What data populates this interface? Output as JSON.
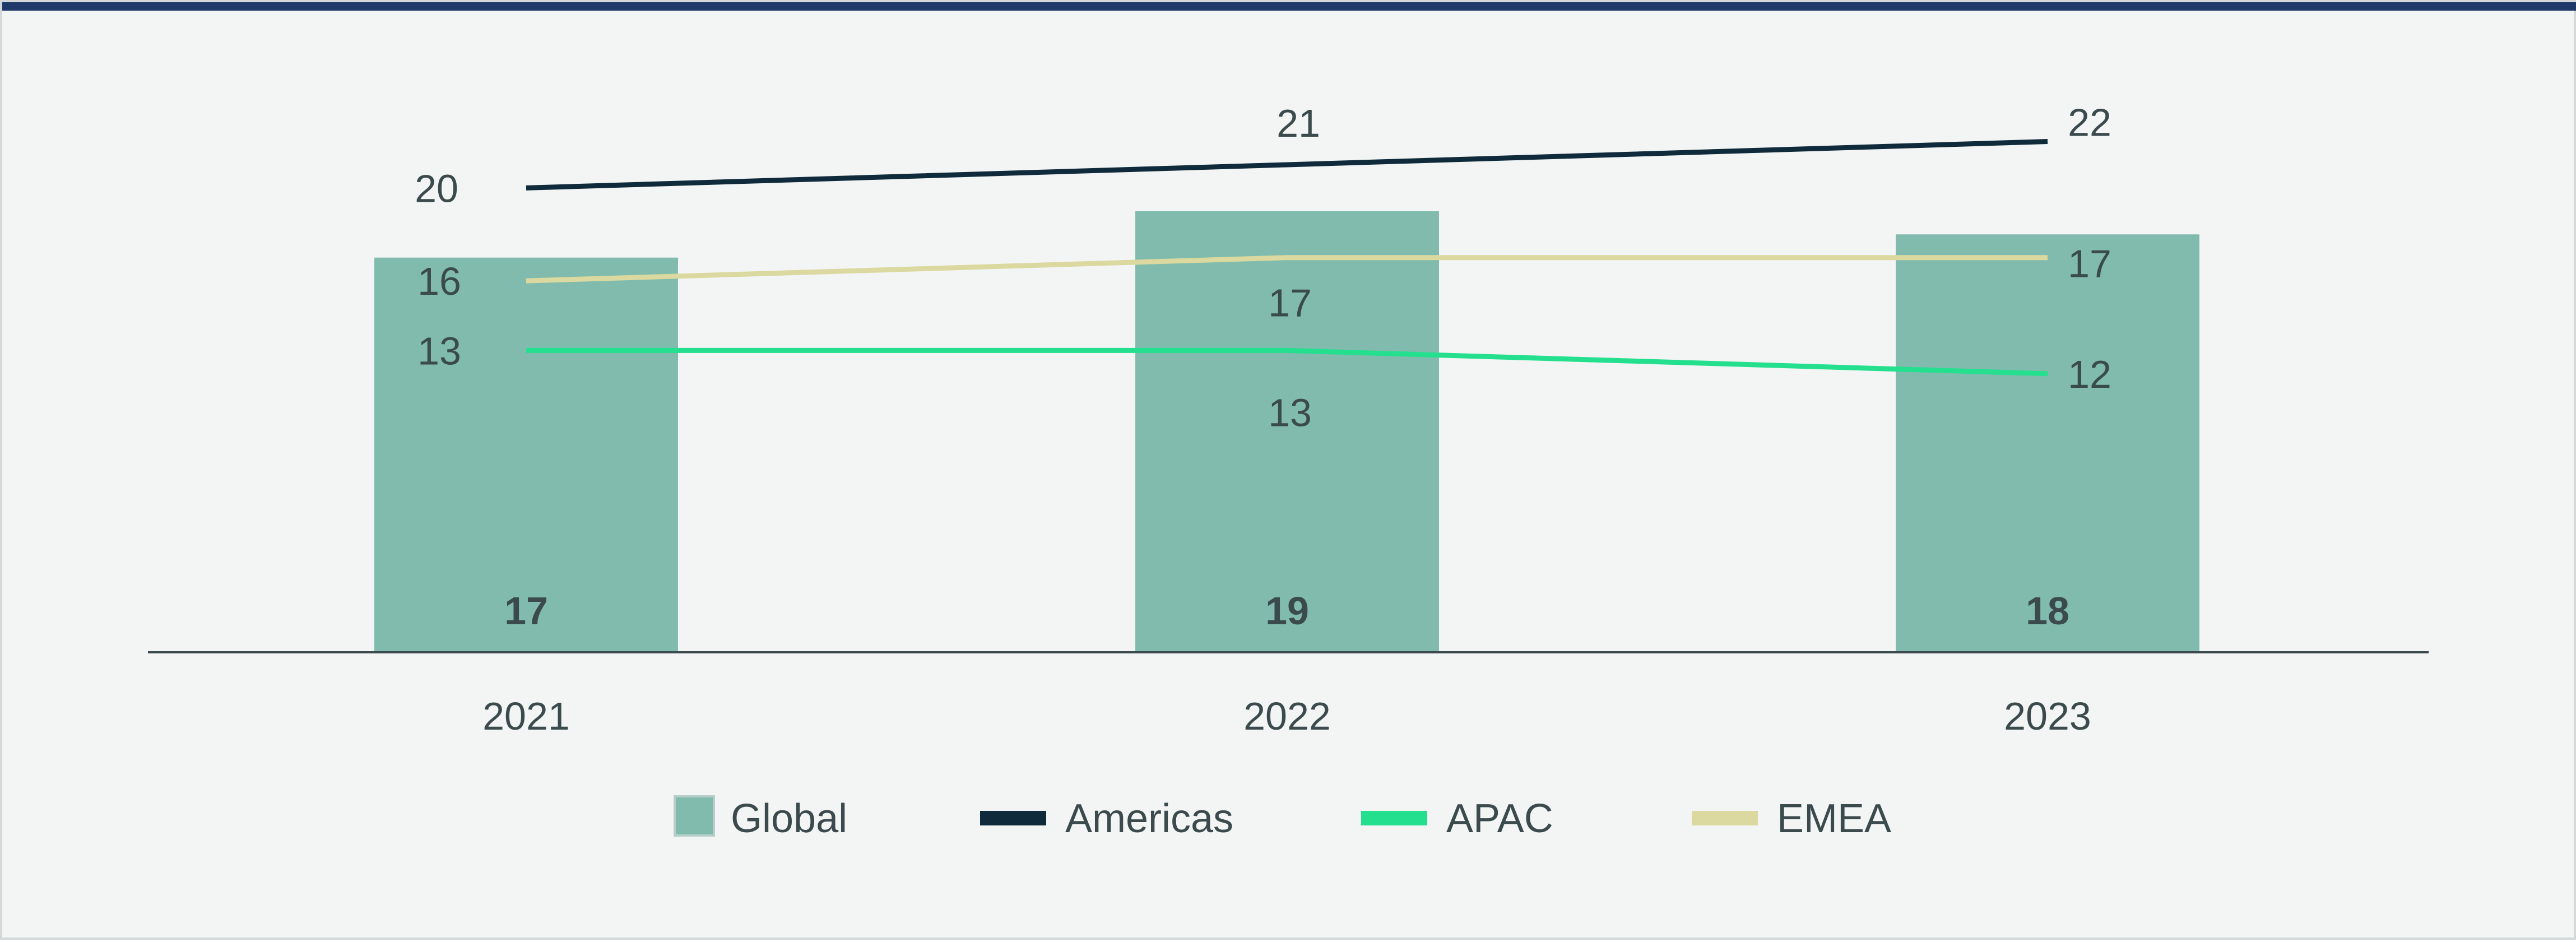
{
  "chart_data": {
    "type": "bar",
    "categories": [
      "2021",
      "2022",
      "2023"
    ],
    "series": [
      {
        "name": "Global",
        "type": "bar",
        "values": [
          17,
          19,
          18
        ],
        "color": "#80bbad"
      },
      {
        "name": "Americas",
        "type": "line",
        "values": [
          20,
          21,
          22
        ],
        "color": "#0f2a3a"
      },
      {
        "name": "APAC",
        "type": "line",
        "values": [
          13,
          13,
          12
        ],
        "color": "#24df8e"
      },
      {
        "name": "EMEA",
        "type": "line",
        "values": [
          16,
          17,
          17
        ],
        "color": "#dbd9a0"
      }
    ],
    "title": "",
    "xlabel": "",
    "ylabel": "",
    "ylim": [
      0,
      28
    ],
    "grid": false,
    "legend": "bottom-center"
  }
}
